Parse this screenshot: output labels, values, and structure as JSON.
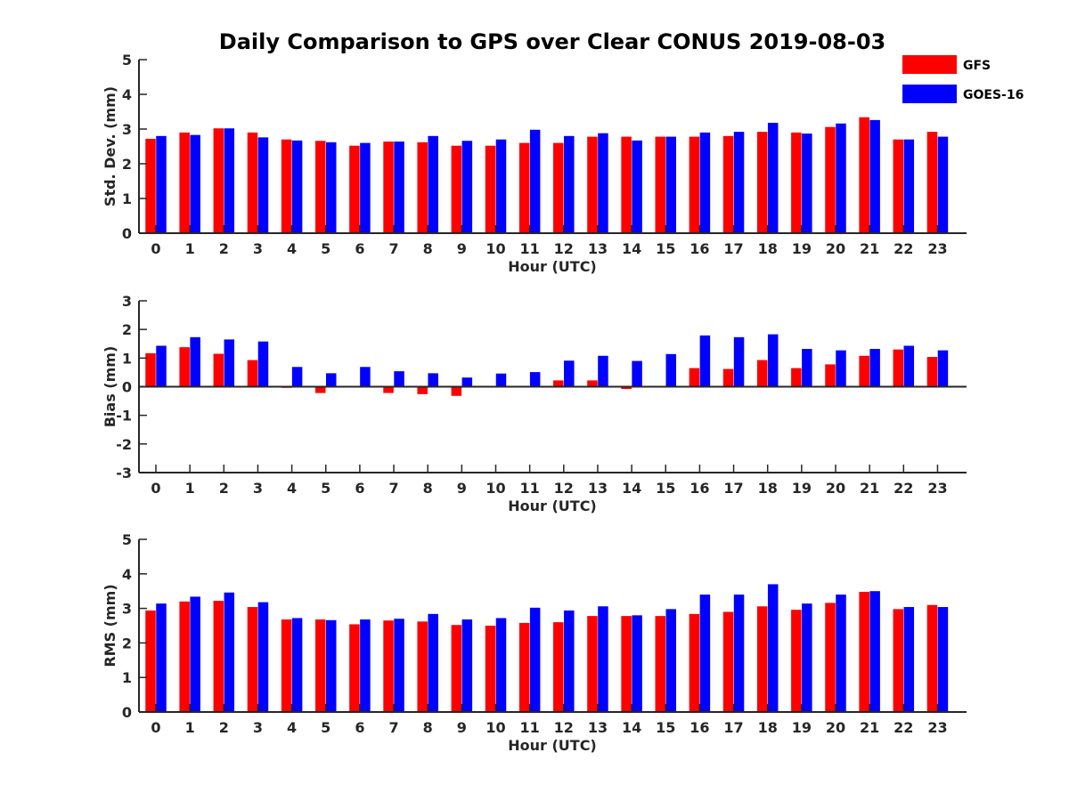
{
  "chart_data": {
    "title": "Daily Comparison to GPS over Clear CONUS 2019-08-03",
    "legend": {
      "position": "top-right",
      "entries": [
        {
          "name": "GFS",
          "color": "#ff0000"
        },
        {
          "name": "GOES-16",
          "color": "#0000ff"
        }
      ]
    },
    "panels": [
      {
        "type": "bar",
        "ylabel": "Std. Dev. (mm)",
        "xlabel": "Hour (UTC)",
        "ylim": [
          0,
          5
        ],
        "yticks": [
          "0",
          "1",
          "2",
          "3",
          "4",
          "5"
        ],
        "categories": [
          "0",
          "1",
          "2",
          "3",
          "4",
          "5",
          "6",
          "7",
          "8",
          "9",
          "10",
          "11",
          "12",
          "13",
          "14",
          "15",
          "16",
          "17",
          "18",
          "19",
          "20",
          "21",
          "22",
          "23"
        ],
        "series": [
          {
            "name": "GFS",
            "color": "#ff0000",
            "values": [
              2.72,
              2.9,
              3.02,
              2.9,
              2.7,
              2.66,
              2.52,
              2.64,
              2.62,
              2.52,
              2.52,
              2.6,
              2.6,
              2.78,
              2.78,
              2.78,
              2.78,
              2.8,
              2.92,
              2.9,
              3.06,
              3.34,
              2.7,
              2.92
            ]
          },
          {
            "name": "GOES-16",
            "color": "#0000ff",
            "values": [
              2.8,
              2.83,
              3.02,
              2.76,
              2.67,
              2.62,
              2.6,
              2.64,
              2.8,
              2.66,
              2.7,
              2.98,
              2.8,
              2.88,
              2.67,
              2.78,
              2.9,
              2.92,
              3.18,
              2.87,
              3.16,
              3.26,
              2.7,
              2.78
            ]
          }
        ]
      },
      {
        "type": "bar",
        "ylabel": "Bias (mm)",
        "xlabel": "Hour (UTC)",
        "ylim": [
          -3,
          3
        ],
        "yticks": [
          "-3",
          "-2",
          "-1",
          "0",
          "1",
          "2",
          "3"
        ],
        "categories": [
          "0",
          "1",
          "2",
          "3",
          "4",
          "5",
          "6",
          "7",
          "8",
          "9",
          "10",
          "11",
          "12",
          "13",
          "14",
          "15",
          "16",
          "17",
          "18",
          "19",
          "20",
          "21",
          "22",
          "23"
        ],
        "series": [
          {
            "name": "GFS",
            "color": "#ff0000",
            "values": [
              1.17,
              1.38,
              1.15,
              0.93,
              -0.04,
              -0.22,
              -0.02,
              -0.22,
              -0.26,
              -0.32,
              0.0,
              0.0,
              0.22,
              0.22,
              -0.08,
              0.0,
              0.65,
              0.62,
              0.93,
              0.65,
              0.78,
              1.08,
              1.3,
              1.04
            ]
          },
          {
            "name": "GOES-16",
            "color": "#0000ff",
            "values": [
              1.43,
              1.73,
              1.65,
              1.58,
              0.69,
              0.47,
              0.69,
              0.54,
              0.47,
              0.32,
              0.46,
              0.51,
              0.91,
              1.08,
              0.9,
              1.14,
              1.79,
              1.73,
              1.83,
              1.32,
              1.27,
              1.32,
              1.43,
              1.27
            ]
          }
        ]
      },
      {
        "type": "bar",
        "ylabel": "RMS (mm)",
        "xlabel": "Hour (UTC)",
        "ylim": [
          0,
          5
        ],
        "yticks": [
          "0",
          "1",
          "2",
          "3",
          "4",
          "5"
        ],
        "categories": [
          "0",
          "1",
          "2",
          "3",
          "4",
          "5",
          "6",
          "7",
          "8",
          "9",
          "10",
          "11",
          "12",
          "13",
          "14",
          "15",
          "16",
          "17",
          "18",
          "19",
          "20",
          "21",
          "22",
          "23"
        ],
        "series": [
          {
            "name": "GFS",
            "color": "#ff0000",
            "values": [
              2.94,
              3.2,
              3.22,
              3.04,
              2.68,
              2.68,
              2.54,
              2.65,
              2.62,
              2.52,
              2.5,
              2.58,
              2.6,
              2.78,
              2.78,
              2.78,
              2.84,
              2.9,
              3.06,
              2.96,
              3.16,
              3.48,
              2.98,
              3.1
            ]
          },
          {
            "name": "GOES-16",
            "color": "#0000ff",
            "values": [
              3.14,
              3.34,
              3.46,
              3.18,
              2.72,
              2.66,
              2.68,
              2.7,
              2.84,
              2.68,
              2.72,
              3.02,
              2.94,
              3.06,
              2.8,
              2.98,
              3.4,
              3.4,
              3.7,
              3.14,
              3.4,
              3.5,
              3.04,
              3.04
            ]
          }
        ]
      }
    ]
  }
}
